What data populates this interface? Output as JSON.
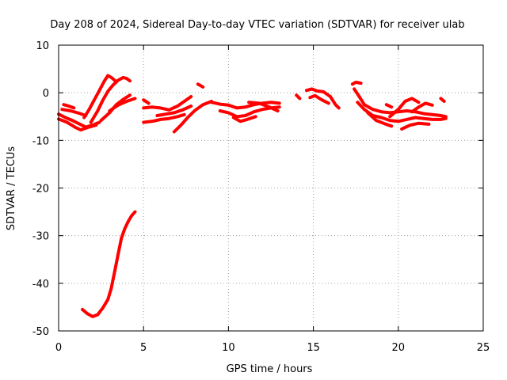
{
  "chart_data": {
    "type": "scatter",
    "title": "Day 208 of 2024, Sidereal Day-to-day VTEC variation (SDTVAR) for receiver ulab",
    "xlabel": "GPS time / hours",
    "ylabel": "SDTVAR / TECUs",
    "xlim": [
      0,
      25
    ],
    "ylim": [
      -50,
      10
    ],
    "xticks": [
      0,
      5,
      10,
      15,
      20,
      25
    ],
    "yticks": [
      10,
      0,
      -10,
      -20,
      -30,
      -40,
      -50
    ],
    "xtick_labels": [
      "0",
      "5",
      "10",
      "15",
      "20",
      "25"
    ],
    "ytick_labels": [
      "10",
      "0",
      "-10",
      "-20",
      "-30",
      "-40",
      "-50"
    ],
    "grid": true,
    "color": "#ff0000",
    "series": [
      {
        "name": "trace-1",
        "points": [
          [
            0.0,
            -4.5
          ],
          [
            0.4,
            -5.2
          ],
          [
            0.8,
            -5.8
          ],
          [
            1.2,
            -6.5
          ],
          [
            1.6,
            -7.2
          ],
          [
            2.0,
            -6.8
          ],
          [
            2.4,
            -6.2
          ]
        ]
      },
      {
        "name": "trace-2",
        "points": [
          [
            0.0,
            -5.5
          ],
          [
            0.5,
            -6.2
          ],
          [
            1.0,
            -7.3
          ],
          [
            1.3,
            -7.8
          ],
          [
            1.7,
            -7.3
          ],
          [
            2.2,
            -6.8
          ]
        ]
      },
      {
        "name": "trace-3",
        "points": [
          [
            0.2,
            -3.5
          ],
          [
            0.7,
            -3.8
          ],
          [
            1.2,
            -4.3
          ],
          [
            1.6,
            -4.8
          ]
        ]
      },
      {
        "name": "trace-4",
        "points": [
          [
            0.3,
            -2.5
          ],
          [
            0.6,
            -2.8
          ],
          [
            0.9,
            -3.2
          ]
        ]
      },
      {
        "name": "trace-5",
        "points": [
          [
            1.5,
            -5.2
          ],
          [
            1.8,
            -3.5
          ],
          [
            2.1,
            -1.5
          ],
          [
            2.4,
            0.5
          ],
          [
            2.7,
            2.5
          ],
          [
            2.9,
            3.6
          ],
          [
            3.1,
            3.2
          ],
          [
            3.3,
            2.6
          ]
        ]
      },
      {
        "name": "trace-6",
        "points": [
          [
            1.9,
            -6.2
          ],
          [
            2.3,
            -3.8
          ],
          [
            2.6,
            -1.6
          ],
          [
            2.9,
            0.3
          ],
          [
            3.2,
            1.6
          ],
          [
            3.5,
            2.6
          ],
          [
            3.8,
            3.2
          ],
          [
            4.0,
            3.0
          ],
          [
            4.2,
            2.5
          ]
        ]
      },
      {
        "name": "trace-7",
        "points": [
          [
            2.5,
            -5.8
          ],
          [
            3.0,
            -4.2
          ],
          [
            3.4,
            -2.5
          ],
          [
            3.8,
            -1.4
          ],
          [
            4.2,
            -0.5
          ]
        ]
      },
      {
        "name": "trace-8",
        "points": [
          [
            3.0,
            -3.8
          ],
          [
            3.5,
            -2.6
          ],
          [
            4.0,
            -1.8
          ],
          [
            4.5,
            -1.2
          ]
        ]
      },
      {
        "name": "trace-9",
        "points": [
          [
            5.0,
            -1.5
          ],
          [
            5.3,
            -2.2
          ]
        ]
      },
      {
        "name": "trace-10",
        "points": [
          [
            5.0,
            -3.2
          ],
          [
            5.5,
            -3.0
          ],
          [
            6.0,
            -3.2
          ],
          [
            6.5,
            -3.6
          ],
          [
            7.0,
            -2.8
          ],
          [
            7.4,
            -1.8
          ],
          [
            7.8,
            -0.8
          ]
        ]
      },
      {
        "name": "trace-11",
        "points": [
          [
            5.0,
            -6.2
          ],
          [
            5.5,
            -6.0
          ],
          [
            6.0,
            -5.6
          ],
          [
            6.5,
            -5.4
          ],
          [
            7.0,
            -5.0
          ],
          [
            7.4,
            -4.6
          ]
        ]
      },
      {
        "name": "trace-12",
        "points": [
          [
            5.8,
            -4.8
          ],
          [
            6.3,
            -4.5
          ],
          [
            6.8,
            -4.2
          ],
          [
            7.3,
            -3.6
          ],
          [
            7.8,
            -2.8
          ]
        ]
      },
      {
        "name": "trace-13",
        "points": [
          [
            6.8,
            -8.2
          ],
          [
            7.2,
            -6.8
          ],
          [
            7.6,
            -5.2
          ],
          [
            8.0,
            -3.8
          ],
          [
            8.5,
            -2.5
          ],
          [
            9.0,
            -1.8
          ]
        ]
      },
      {
        "name": "trace-14",
        "points": [
          [
            8.2,
            1.8
          ],
          [
            8.5,
            1.2
          ]
        ]
      },
      {
        "name": "trace-15",
        "points": [
          [
            9.0,
            -2.0
          ],
          [
            9.5,
            -2.4
          ],
          [
            10.0,
            -2.6
          ],
          [
            10.5,
            -3.2
          ],
          [
            11.0,
            -3.0
          ],
          [
            11.5,
            -2.5
          ],
          [
            12.0,
            -2.2
          ],
          [
            12.5,
            -2.0
          ],
          [
            13.0,
            -2.2
          ]
        ]
      },
      {
        "name": "trace-16",
        "points": [
          [
            9.5,
            -3.8
          ],
          [
            10.0,
            -4.2
          ],
          [
            10.5,
            -5.0
          ],
          [
            11.0,
            -4.8
          ],
          [
            11.5,
            -4.0
          ],
          [
            12.0,
            -3.5
          ],
          [
            12.5,
            -3.2
          ],
          [
            13.0,
            -3.0
          ]
        ]
      },
      {
        "name": "trace-17",
        "points": [
          [
            10.3,
            -5.2
          ],
          [
            10.7,
            -6.0
          ],
          [
            11.1,
            -5.6
          ],
          [
            11.6,
            -5.0
          ]
        ]
      },
      {
        "name": "trace-18",
        "points": [
          [
            11.2,
            -2.0
          ],
          [
            11.8,
            -2.2
          ],
          [
            12.4,
            -3.0
          ],
          [
            12.9,
            -3.8
          ]
        ]
      },
      {
        "name": "trace-19",
        "points": [
          [
            14.0,
            -0.5
          ],
          [
            14.2,
            -1.2
          ]
        ]
      },
      {
        "name": "trace-20",
        "points": [
          [
            14.6,
            0.5
          ],
          [
            14.9,
            0.8
          ],
          [
            15.2,
            0.4
          ],
          [
            15.6,
            0.2
          ],
          [
            16.0,
            -0.8
          ],
          [
            16.3,
            -2.5
          ],
          [
            16.5,
            -3.2
          ]
        ]
      },
      {
        "name": "trace-21",
        "points": [
          [
            14.8,
            -1.0
          ],
          [
            15.1,
            -0.6
          ],
          [
            15.5,
            -1.5
          ],
          [
            15.9,
            -2.2
          ]
        ]
      },
      {
        "name": "trace-22",
        "points": [
          [
            17.3,
            1.8
          ],
          [
            17.5,
            2.2
          ],
          [
            17.8,
            2.0
          ]
        ]
      },
      {
        "name": "trace-23",
        "points": [
          [
            17.4,
            0.8
          ],
          [
            17.7,
            -0.8
          ],
          [
            18.0,
            -2.5
          ],
          [
            18.5,
            -3.5
          ],
          [
            19.0,
            -4.0
          ],
          [
            19.5,
            -4.2
          ],
          [
            20.0,
            -4.0
          ],
          [
            20.5,
            -3.8
          ],
          [
            21.0,
            -4.0
          ],
          [
            21.5,
            -4.4
          ],
          [
            22.0,
            -4.6
          ],
          [
            22.5,
            -4.8
          ],
          [
            22.8,
            -5.0
          ]
        ]
      },
      {
        "name": "trace-24",
        "points": [
          [
            17.6,
            -2.0
          ],
          [
            18.0,
            -3.5
          ],
          [
            18.5,
            -4.8
          ],
          [
            19.0,
            -5.2
          ],
          [
            19.5,
            -5.8
          ],
          [
            20.0,
            -6.0
          ],
          [
            20.5,
            -5.6
          ],
          [
            21.0,
            -5.2
          ],
          [
            21.5,
            -5.4
          ],
          [
            22.0,
            -5.6
          ],
          [
            22.5,
            -5.6
          ],
          [
            22.8,
            -5.4
          ]
        ]
      },
      {
        "name": "trace-25",
        "points": [
          [
            18.2,
            -4.2
          ],
          [
            18.7,
            -5.8
          ],
          [
            19.2,
            -6.5
          ],
          [
            19.6,
            -7.0
          ]
        ]
      },
      {
        "name": "trace-26",
        "points": [
          [
            19.3,
            -2.5
          ],
          [
            19.6,
            -3.0
          ]
        ]
      },
      {
        "name": "trace-27",
        "points": [
          [
            19.5,
            -5.0
          ],
          [
            20.0,
            -3.5
          ],
          [
            20.4,
            -1.8
          ],
          [
            20.8,
            -1.2
          ],
          [
            21.2,
            -2.0
          ]
        ]
      },
      {
        "name": "trace-28",
        "points": [
          [
            20.2,
            -7.6
          ],
          [
            20.7,
            -6.8
          ],
          [
            21.2,
            -6.4
          ],
          [
            21.8,
            -6.6
          ]
        ]
      },
      {
        "name": "trace-29",
        "points": [
          [
            20.8,
            -4.0
          ],
          [
            21.2,
            -3.0
          ],
          [
            21.6,
            -2.2
          ],
          [
            22.0,
            -2.6
          ]
        ]
      },
      {
        "name": "trace-30",
        "points": [
          [
            22.5,
            -1.2
          ],
          [
            22.7,
            -1.8
          ]
        ]
      },
      {
        "name": "trace-31",
        "points": [
          [
            1.4,
            -45.5
          ],
          [
            1.7,
            -46.4
          ],
          [
            2.0,
            -47.0
          ],
          [
            2.3,
            -46.6
          ],
          [
            2.6,
            -45.2
          ],
          [
            2.9,
            -43.4
          ],
          [
            3.1,
            -41.0
          ],
          [
            3.3,
            -37.5
          ],
          [
            3.5,
            -34.0
          ],
          [
            3.7,
            -30.5
          ],
          [
            3.9,
            -28.5
          ],
          [
            4.1,
            -27.0
          ],
          [
            4.3,
            -25.8
          ],
          [
            4.5,
            -25.0
          ]
        ]
      }
    ]
  }
}
